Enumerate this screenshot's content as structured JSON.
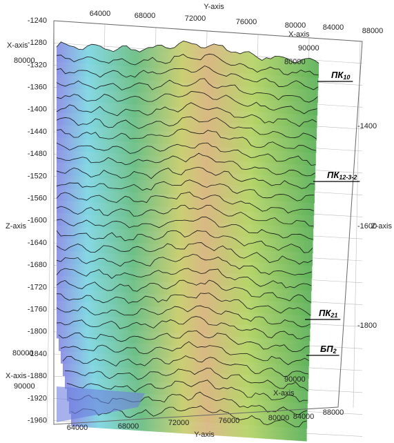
{
  "z_axis": {
    "label": "Z-axis",
    "ticks": [
      -1240,
      -1280,
      -1320,
      -1360,
      -1400,
      -1440,
      -1480,
      -1520,
      -1560,
      -1600,
      -1640,
      -1680,
      -1720,
      -1760,
      -1800,
      -1840,
      -1880,
      -1920,
      -1960
    ],
    "right_ticks": [
      -1400,
      -1600,
      -1800
    ]
  },
  "y_axis": {
    "label": "Y-axis",
    "top_ticks": [
      64000,
      68000,
      72000,
      76000,
      80000,
      84000,
      88000
    ],
    "bottom_ticks": [
      64000,
      68000,
      72000,
      76000,
      80000,
      84000,
      88000
    ]
  },
  "x_axis": {
    "label": "X-axis",
    "left_top_ticks": [
      80000
    ],
    "left_bottom_ticks": [
      80000,
      90000
    ],
    "right_top_ticks": [
      90000,
      80000
    ],
    "right_bottom_ticks": [
      90000
    ]
  },
  "horizons": [
    {
      "base": "ПК",
      "sub": "10"
    },
    {
      "base": "ПК",
      "sub": "12-3-2"
    },
    {
      "base": "ПК",
      "sub": "21"
    },
    {
      "base": "БП",
      "sub": "2"
    }
  ]
}
